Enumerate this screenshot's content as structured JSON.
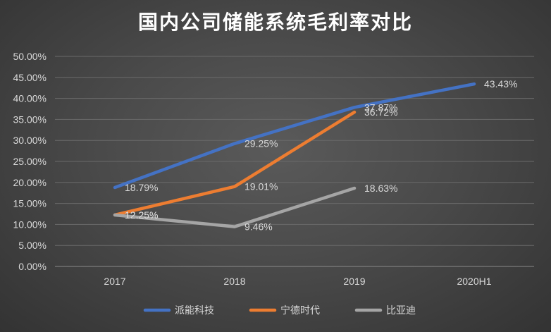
{
  "chart_data": {
    "type": "line",
    "title": "国内公司储能系统毛利率对比",
    "categories": [
      "2017",
      "2018",
      "2019",
      "2020H1"
    ],
    "ylim": [
      0,
      50
    ],
    "yticks": [
      0,
      5,
      10,
      15,
      20,
      25,
      30,
      35,
      40,
      45,
      50
    ],
    "ytick_labels": [
      "0.00%",
      "5.00%",
      "10.00%",
      "15.00%",
      "20.00%",
      "25.00%",
      "30.00%",
      "35.00%",
      "40.00%",
      "45.00%",
      "50.00%"
    ],
    "grid": true,
    "legend_position": "bottom",
    "series": [
      {
        "name": "派能科技",
        "color": "#4472c4",
        "values": [
          18.79,
          29.25,
          37.87,
          43.43
        ],
        "labels": [
          "18.79%",
          "29.25%",
          "37.87%",
          "43.43%"
        ]
      },
      {
        "name": "宁德时代",
        "color": "#ed7d31",
        "values": [
          12.25,
          19.01,
          36.72,
          null
        ],
        "labels": [
          "12.25%",
          "19.01%",
          "36.72%",
          null
        ]
      },
      {
        "name": "比亚迪",
        "color": "#a5a5a5",
        "values": [
          12.25,
          9.46,
          18.63,
          null
        ],
        "labels": [
          "12.25%",
          "9.46%",
          "18.63%",
          null
        ]
      }
    ]
  }
}
